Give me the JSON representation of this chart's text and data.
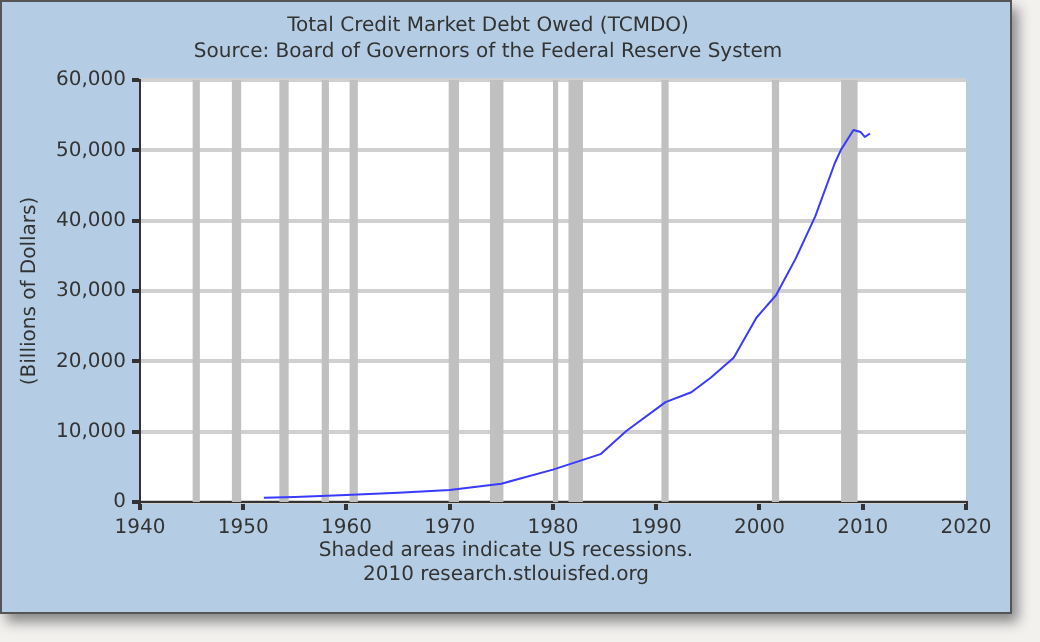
{
  "chart_data": {
    "type": "line",
    "title": "Total Credit Market Debt Owed (TCMDO)",
    "subtitle": "Source: Board of Governors of the Federal Reserve System",
    "ylabel": "(Billions of Dollars)",
    "annotations": [
      "Shaded areas indicate US recessions.",
      "2010 research.stlouisfed.org"
    ],
    "x": [
      1952,
      1955,
      1960,
      1965,
      1970,
      1975,
      1980,
      1984.6,
      1987.1,
      1990.9,
      1993.4,
      1995.3,
      1997.5,
      1999.7,
      2001.6,
      2003.5,
      2005.4,
      2007.3,
      2007.9,
      2009.1,
      2009.8,
      2010.2,
      2010.7
    ],
    "series": [
      {
        "color": "#3a3aff",
        "values": [
          600,
          700,
          1000,
          1300,
          1700,
          2600,
          4600,
          6800,
          10100,
          14200,
          15600,
          17700,
          20500,
          26200,
          29400,
          34600,
          40600,
          48200,
          50100,
          52900,
          52600,
          51900,
          52400
        ]
      }
    ],
    "xlim": [
      1940,
      2020
    ],
    "xticks": [
      1940,
      1950,
      1960,
      1970,
      1980,
      1990,
      2000,
      2010,
      2020
    ],
    "ylim": [
      0,
      60000
    ],
    "yticks": [
      0,
      {
        "value": 10000,
        "label": "10,000"
      },
      {
        "value": 20000,
        "label": "20,000"
      },
      {
        "value": 30000,
        "label": "30,000"
      },
      {
        "value": 40000,
        "label": "40,000"
      },
      {
        "value": 50000,
        "label": "50,000"
      },
      {
        "value": 60000,
        "label": "60,000"
      }
    ],
    "bands": [
      {
        "axis": "x",
        "from": 1945.1,
        "to": 1945.8,
        "color": "#c0c0c0"
      },
      {
        "axis": "x",
        "from": 1948.9,
        "to": 1949.8,
        "color": "#c0c0c0"
      },
      {
        "axis": "x",
        "from": 1953.5,
        "to": 1954.4,
        "color": "#c0c0c0"
      },
      {
        "axis": "x",
        "from": 1957.6,
        "to": 1958.3,
        "color": "#c0c0c0"
      },
      {
        "axis": "x",
        "from": 1960.3,
        "to": 1961.1,
        "color": "#c0c0c0"
      },
      {
        "axis": "x",
        "from": 1969.9,
        "to": 1970.9,
        "color": "#c0c0c0"
      },
      {
        "axis": "x",
        "from": 1973.9,
        "to": 1975.2,
        "color": "#c0c0c0"
      },
      {
        "axis": "x",
        "from": 1980.0,
        "to": 1980.5,
        "color": "#c0c0c0"
      },
      {
        "axis": "x",
        "from": 1981.5,
        "to": 1982.9,
        "color": "#c0c0c0"
      },
      {
        "axis": "x",
        "from": 1990.5,
        "to": 1991.2,
        "color": "#c0c0c0"
      },
      {
        "axis": "x",
        "from": 2001.2,
        "to": 2001.9,
        "color": "#c0c0c0"
      },
      {
        "axis": "x",
        "from": 2007.9,
        "to": 2009.5,
        "color": "#c0c0c0"
      }
    ],
    "grid": "y",
    "legend": false,
    "marker": "none",
    "line_style": "solid"
  }
}
